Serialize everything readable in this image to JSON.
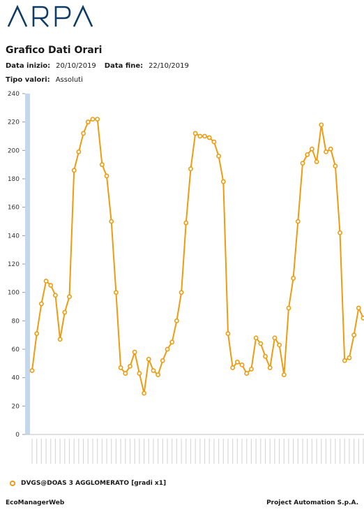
{
  "header": {
    "logo_text": "ARPA",
    "title": "Grafico Dati Orari"
  },
  "meta": {
    "start_label": "Data inizio:",
    "start_value": "20/10/2019",
    "end_label": "Data fine:",
    "end_value": "22/10/2019",
    "type_label": "Tipo valori:",
    "type_value": "Assoluti"
  },
  "legend": {
    "label": "DVGS@DOAS 3 AGGLOMERATO [gradi x1]"
  },
  "footer": {
    "left": "EcoManagerWeb",
    "right": "Project Automation S.p.A."
  },
  "colors": {
    "series": "#ef9b0f",
    "axis_band": "#c5d7ea",
    "grid": "#e6e6e6"
  },
  "chart_data": {
    "type": "line",
    "title": "",
    "xlabel": "",
    "ylabel": "",
    "ylim": [
      0,
      240
    ],
    "yticks": [
      0,
      20,
      40,
      60,
      80,
      100,
      120,
      140,
      160,
      180,
      200,
      220,
      240
    ],
    "grid": false,
    "legend_position": "bottom-left",
    "series": [
      {
        "name": "DVGS@DOAS 3 AGGLOMERATO [gradi x1]",
        "values": [
          45,
          71,
          92,
          108,
          105,
          98,
          67,
          86,
          97,
          186,
          199,
          212,
          220,
          222,
          222,
          190,
          182,
          150,
          100,
          47,
          43,
          48,
          58,
          43,
          29,
          53,
          45,
          42,
          52,
          60,
          65,
          80,
          100,
          149,
          187,
          212,
          210,
          210,
          209,
          206,
          196,
          178,
          71,
          47,
          51,
          49,
          43,
          46,
          68,
          64,
          55,
          47,
          68,
          63,
          42,
          89,
          110,
          150,
          191,
          197,
          201,
          192,
          218,
          199,
          201,
          189,
          142,
          52,
          54,
          70,
          89,
          82
        ]
      }
    ]
  }
}
